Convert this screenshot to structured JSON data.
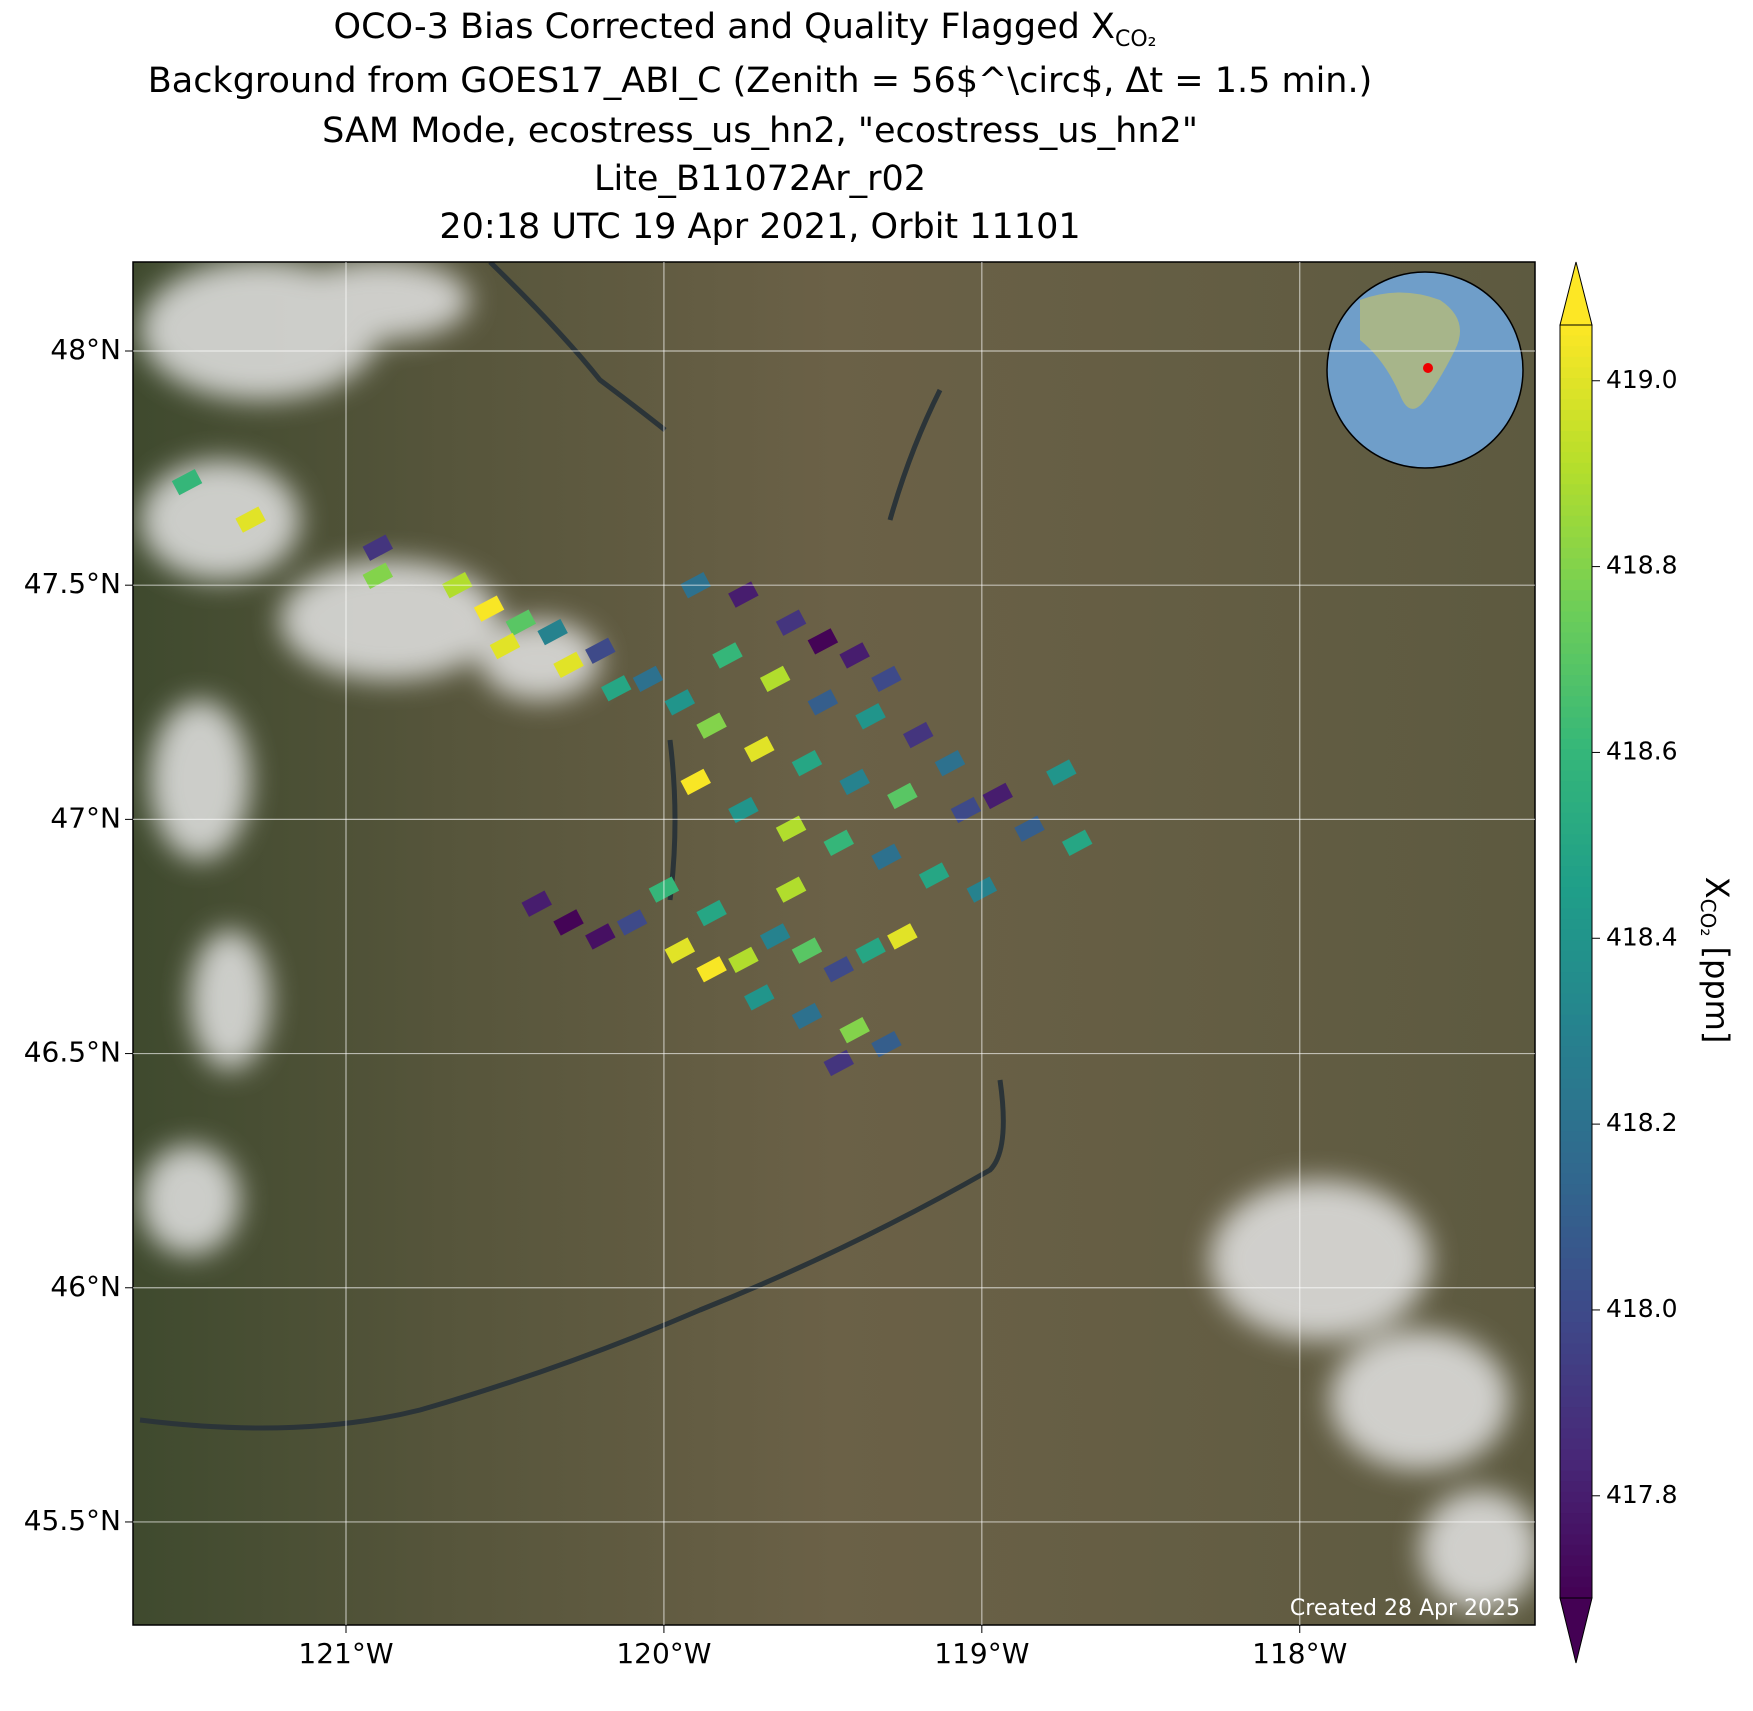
{
  "chart_data": {
    "type": "map",
    "title_lines": [
      "OCO-3 Bias Corrected and Quality Flagged X",
      "Background from GOES17_ABI_C (Zenith = 56$^\\circ$, Δt =  1.5 min.)",
      "SAM Mode, ecostress_us_hn2, \"ecostress_us_hn2\"",
      "Lite_B11072Ar_r02",
      "20:18 UTC 19 Apr 2021, Orbit 11101"
    ],
    "title_subscript": "CO₂",
    "xlim": [
      -121.67,
      -117.26
    ],
    "ylim": [
      45.28,
      48.19
    ],
    "xticks": [
      {
        "value": -121,
        "label": "121°W"
      },
      {
        "value": -120,
        "label": "120°W"
      },
      {
        "value": -119,
        "label": "119°W"
      },
      {
        "value": -118,
        "label": "118°W"
      }
    ],
    "yticks": [
      {
        "value": 48,
        "label": "48°N"
      },
      {
        "value": 47.5,
        "label": "47.5°N"
      },
      {
        "value": 47,
        "label": "47°N"
      },
      {
        "value": 46.5,
        "label": "46.5°N"
      },
      {
        "value": 46,
        "label": "46°N"
      },
      {
        "value": 45.5,
        "label": "45.5°N"
      }
    ],
    "grid": true,
    "colormap": "viridis",
    "clim": [
      417.69,
      419.06
    ],
    "cticks": [
      {
        "value": 419,
        "label": "419.0"
      },
      418.8,
      418.6,
      418.4,
      418.2,
      {
        "value": 418,
        "label": "418.0"
      },
      417.8
    ],
    "colorbar_label": {
      "base": "X",
      "sub": "CO₂",
      "unit": " [ppm]"
    },
    "footnote": "Created 28 Apr 2025",
    "soundings": {
      "lon": [
        -120.65,
        -120.55,
        -120.45,
        -120.5,
        -120.35,
        -120.3,
        -120.2,
        -120.15,
        -120.05,
        -119.95,
        -119.9,
        -119.75,
        -119.6,
        -119.5,
        -119.4,
        -119.3,
        -119.8,
        -119.65,
        -119.5,
        -119.35,
        -119.2,
        -119.1,
        -119.85,
        -119.7,
        -119.55,
        -119.4,
        -119.25,
        -119.05,
        -118.95,
        -118.85,
        -119.9,
        -119.75,
        -119.6,
        -119.45,
        -119.3,
        -119.15,
        -119.0,
        -120.4,
        -120.3,
        -120.2,
        -120.1,
        -120.0,
        -119.95,
        -119.85,
        -119.75,
        -119.65,
        -119.55,
        -119.45,
        -119.35,
        -119.25,
        -119.7,
        -119.55,
        -119.4,
        -119.3,
        -119.45,
        -119.85,
        -119.6,
        -121.5,
        -121.3,
        -120.9,
        -120.9,
        -118.75,
        -118.7
      ],
      "lat": [
        47.5,
        47.45,
        47.42,
        47.37,
        47.4,
        47.33,
        47.36,
        47.28,
        47.3,
        47.25,
        47.5,
        47.48,
        47.42,
        47.38,
        47.35,
        47.3,
        47.35,
        47.3,
        47.25,
        47.22,
        47.18,
        47.12,
        47.2,
        47.15,
        47.12,
        47.08,
        47.05,
        47.02,
        47.05,
        46.98,
        47.08,
        47.02,
        46.98,
        46.95,
        46.92,
        46.88,
        46.85,
        46.82,
        46.78,
        46.75,
        46.78,
        46.85,
        46.72,
        46.68,
        46.7,
        46.75,
        46.72,
        46.68,
        46.72,
        46.75,
        46.62,
        46.58,
        46.55,
        46.52,
        46.48,
        46.8,
        46.85,
        47.72,
        47.64,
        47.58,
        47.52,
        47.1,
        46.95
      ],
      "xco2": [
        418.9,
        419.05,
        418.7,
        419.0,
        418.3,
        419.0,
        418.0,
        418.5,
        418.2,
        418.4,
        418.2,
        417.8,
        417.9,
        417.7,
        417.8,
        418.0,
        418.6,
        418.9,
        418.1,
        418.4,
        417.9,
        418.2,
        418.8,
        419.0,
        418.5,
        418.3,
        418.7,
        418.0,
        417.8,
        418.1,
        419.05,
        418.4,
        418.9,
        418.6,
        418.2,
        418.5,
        418.3,
        417.8,
        417.7,
        417.75,
        418.0,
        418.6,
        419.0,
        419.05,
        418.9,
        418.3,
        418.7,
        418.0,
        418.5,
        419.0,
        418.4,
        418.2,
        418.8,
        418.1,
        417.9,
        418.5,
        418.9,
        418.6,
        419.0,
        417.9,
        418.8,
        418.4,
        418.5
      ]
    }
  }
}
